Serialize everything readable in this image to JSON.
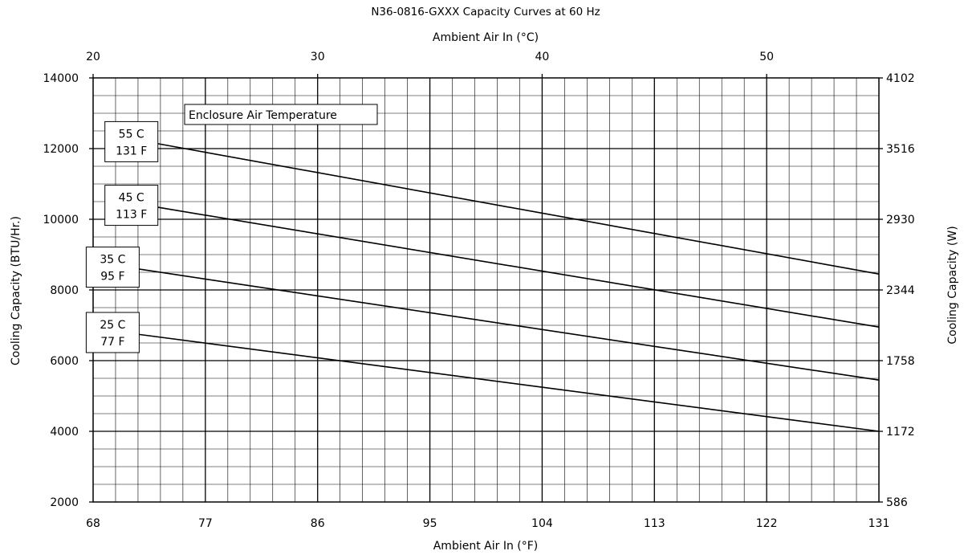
{
  "chart_data": {
    "type": "line",
    "title": "N36-0816-GXXX Capacity Curves at 60 Hz",
    "xlabel": "Ambient Air In (°F)",
    "xlabel_top": "Ambient Air In (°C)",
    "ylabel": "Cooling Capacity (BTU/Hr.)",
    "ylabel_right": "Cooling Capacity (W)",
    "xlim": [
      68,
      131
    ],
    "ylim": [
      2000,
      14000
    ],
    "x_ticks": [
      68,
      77,
      86,
      95,
      104,
      113,
      122,
      131
    ],
    "y_ticks": [
      2000,
      4000,
      6000,
      8000,
      10000,
      12000,
      14000
    ],
    "x_top_ticks": [
      20,
      30,
      40,
      50
    ],
    "y_right_ticks": [
      586,
      1172,
      1758,
      2344,
      2930,
      3516,
      4102
    ],
    "grid": true,
    "annotation": "Enclosure Air Temperature",
    "series": [
      {
        "name": "55 C / 131 F",
        "line1": "55 C",
        "line2": "131 F",
        "x": [
          73,
          131
        ],
        "y": [
          12150,
          8450
        ]
      },
      {
        "name": "45 C / 113 F",
        "line1": "45 C",
        "line2": "113 F",
        "x": [
          73,
          131
        ],
        "y": [
          10350,
          6950
        ]
      },
      {
        "name": "35 C / 95 F",
        "line1": "35 C",
        "line2": "95 F",
        "x": [
          71.5,
          131
        ],
        "y": [
          8600,
          5450
        ]
      },
      {
        "name": "25 C / 77 F",
        "line1": "25 C",
        "line2": "77 F",
        "x": [
          71.5,
          131
        ],
        "y": [
          6750,
          4000
        ]
      }
    ]
  }
}
